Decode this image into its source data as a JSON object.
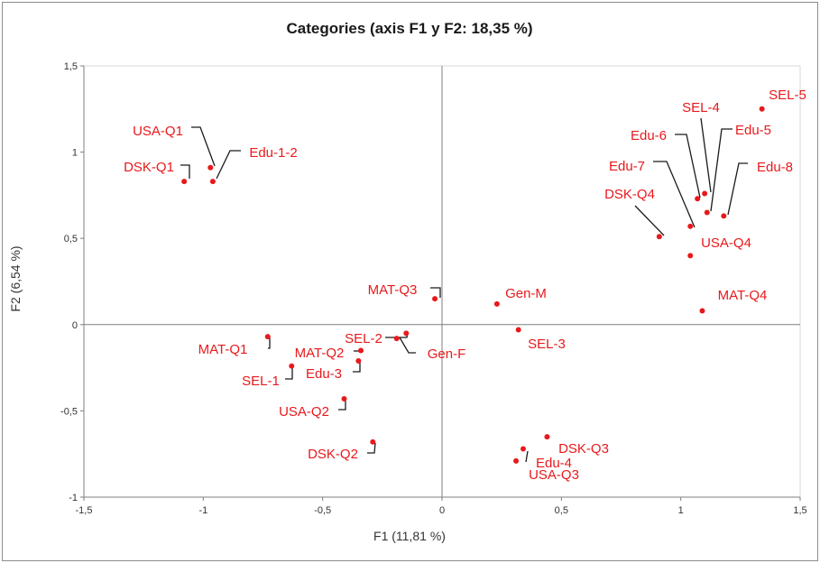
{
  "chart_data": {
    "type": "scatter",
    "title": "Categories (axis F1 y F2: 18,35 %)",
    "xlabel": "F1 (11,81 %)",
    "ylabel": "F2 (6,54 %)",
    "xlim": [
      -1.5,
      1.5
    ],
    "ylim": [
      -1,
      1.5
    ],
    "xticks": [
      -1.5,
      -1,
      -0.5,
      0,
      0.5,
      1,
      1.5
    ],
    "xtick_labels": [
      "-1,5",
      "-1",
      "-0,5",
      "0",
      "0,5",
      "1",
      "1,5"
    ],
    "yticks": [
      -1,
      -0.5,
      0,
      0.5,
      1,
      1.5
    ],
    "ytick_labels": [
      "-1",
      "-0,5",
      "0",
      "0,5",
      "1",
      "1,5"
    ],
    "marker_color": "#e8191c",
    "label_color": "#e8191c",
    "axis_color": "#7f7f7f",
    "points": [
      {
        "label": "USA-Q1",
        "x": -0.97,
        "y": 0.91
      },
      {
        "label": "Edu-1-2",
        "x": -0.96,
        "y": 0.83
      },
      {
        "label": "DSK-Q1",
        "x": -1.08,
        "y": 0.83
      },
      {
        "label": "MAT-Q3",
        "x": -0.03,
        "y": 0.15
      },
      {
        "label": "Gen-M",
        "x": 0.23,
        "y": 0.12
      },
      {
        "label": "SEL-3",
        "x": 0.32,
        "y": -0.03
      },
      {
        "label": "SEL-2",
        "x": -0.15,
        "y": -0.05
      },
      {
        "label": "Gen-F",
        "x": -0.19,
        "y": -0.08
      },
      {
        "label": "MAT-Q1",
        "x": -0.73,
        "y": -0.07
      },
      {
        "label": "MAT-Q2",
        "x": -0.34,
        "y": -0.15
      },
      {
        "label": "SEL-1",
        "x": -0.63,
        "y": -0.24
      },
      {
        "label": "Edu-3",
        "x": -0.35,
        "y": -0.21
      },
      {
        "label": "USA-Q2",
        "x": -0.41,
        "y": -0.43
      },
      {
        "label": "DSK-Q2",
        "x": -0.29,
        "y": -0.68
      },
      {
        "label": "DSK-Q3",
        "x": 0.44,
        "y": -0.65
      },
      {
        "label": "Edu-4",
        "x": 0.34,
        "y": -0.72
      },
      {
        "label": "USA-Q3",
        "x": 0.31,
        "y": -0.79
      },
      {
        "label": "SEL-5",
        "x": 1.34,
        "y": 1.25
      },
      {
        "label": "SEL-4",
        "x": 1.1,
        "y": 0.76
      },
      {
        "label": "Edu-5",
        "x": 1.11,
        "y": 0.65
      },
      {
        "label": "Edu-6",
        "x": 1.07,
        "y": 0.73
      },
      {
        "label": "Edu-7",
        "x": 1.04,
        "y": 0.57
      },
      {
        "label": "Edu-8",
        "x": 1.18,
        "y": 0.63
      },
      {
        "label": "DSK-Q4",
        "x": 0.91,
        "y": 0.51
      },
      {
        "label": "USA-Q4",
        "x": 1.04,
        "y": 0.4
      },
      {
        "label": "MAT-Q4",
        "x": 1.09,
        "y": 0.08
      }
    ]
  }
}
